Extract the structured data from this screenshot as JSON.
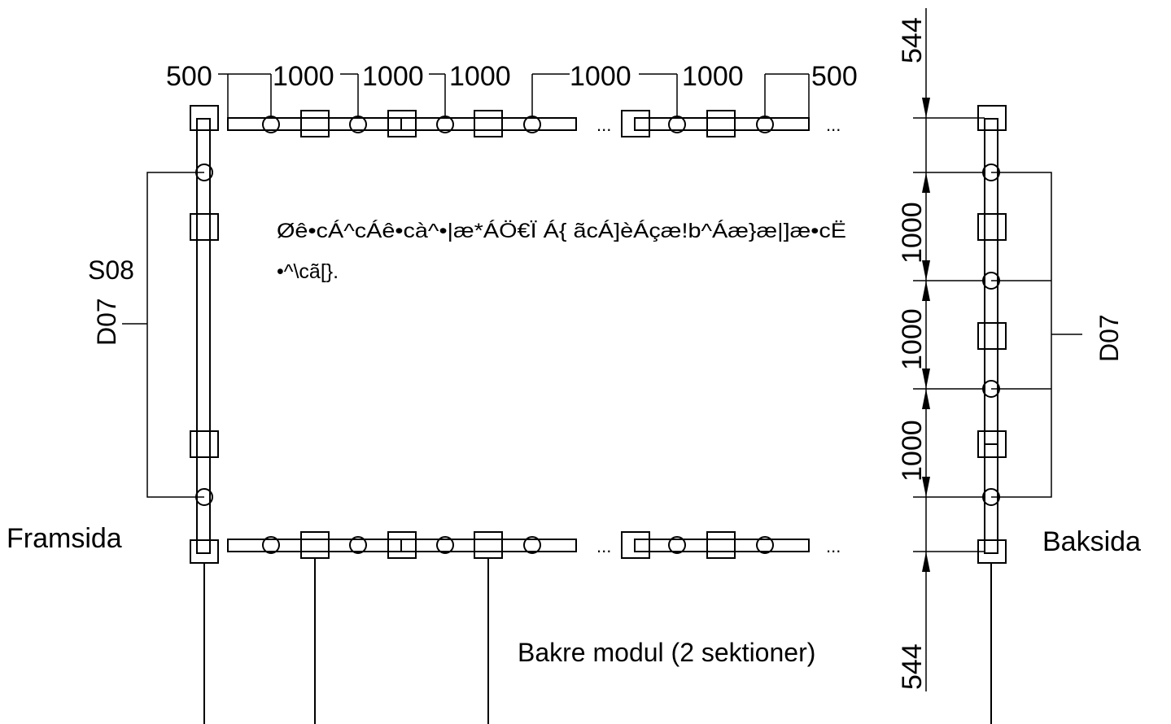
{
  "labels": {
    "front": "Framsida",
    "back": "Baksida",
    "caption": "Bakre modul (2 sektioner)",
    "s08": "S08",
    "d07_left": "D07",
    "d07_right": "D07",
    "garbled_line1": "Øê•cÁ^cÁê•cà^•|æ*ÁÖ€Ï Á{ ãcÁ]èÁçæ!b^Áæ}æ|]æ•cË",
    "garbled_line2": "•^\\cã[}."
  },
  "dimensions": {
    "top": [
      "500",
      "1000",
      "1000",
      "1000",
      "1000",
      "1000",
      "500"
    ],
    "top_right": "544",
    "bottom_right": "544",
    "right_vertical": [
      "1000",
      "1000",
      "1000"
    ]
  },
  "ellipsis": "..."
}
